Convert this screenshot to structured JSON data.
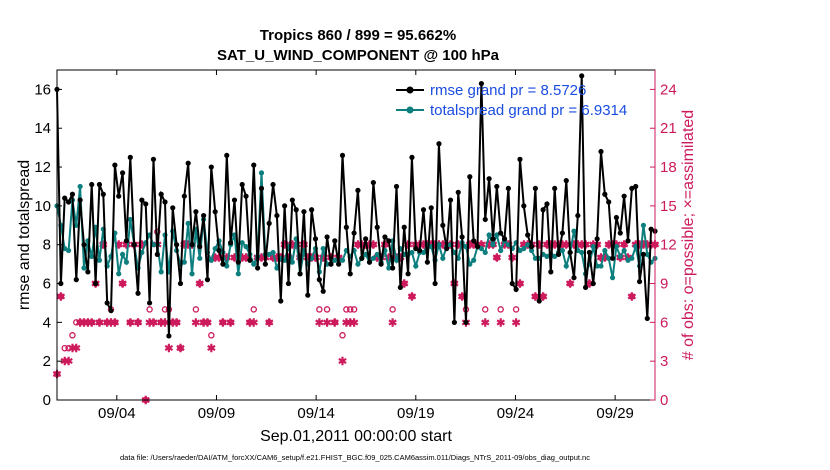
{
  "chart_data": {
    "type": "line",
    "title": "Tropics 860 / 899 = 95.662%",
    "subtitle": "SAT_U_WIND_COMPONENT @ 100 hPa",
    "xlabel": "Sep.01,2011 00:00:00 start",
    "ylabel": "rmse and totalspread",
    "y2label": "# of obs: o=possible; ×=assimilated",
    "footnote": "data file: /Users/raeder/DAI/ATM_forcXX/CAM6_setup/f.e21.FHIST_BGC.f09_025.CAM6assim.011/Diags_NTrS_2011-09/obs_diag_output.nc",
    "xlim": [
      1,
      31
    ],
    "ylim": [
      0,
      17
    ],
    "y2lim": [
      0,
      25.5
    ],
    "x_ticks": [
      {
        "label": "09/04",
        "day": 4
      },
      {
        "label": "09/09",
        "day": 9
      },
      {
        "label": "09/14",
        "day": 14
      },
      {
        "label": "09/19",
        "day": 19
      },
      {
        "label": "09/24",
        "day": 24
      },
      {
        "label": "09/29",
        "day": 29
      }
    ],
    "y_ticks": [
      "0",
      "2",
      "4",
      "6",
      "8",
      "10",
      "12",
      "14",
      "16"
    ],
    "y2_ticks": [
      "0",
      "3",
      "6",
      "9",
      "12",
      "15",
      "18",
      "21",
      "24"
    ],
    "series": [
      {
        "name": "rmse",
        "legend": "rmse grand pr = 8.5726",
        "color": "#000000",
        "values": [
          16.0,
          6.0,
          10.4,
          10.2,
          10.6,
          6.2,
          10.3,
          8.0,
          6.6,
          11.1,
          6.0,
          11.1,
          10.6,
          5.0,
          4.6,
          12.1,
          10.5,
          11.7,
          8.2,
          12.5,
          8.0,
          5.5,
          10.3,
          10.1,
          5.0,
          12.4,
          7.5,
          10.6,
          10.2,
          3.3,
          9.9,
          8.0,
          6.0,
          10.5,
          12.2,
          8.0,
          9.7,
          7.9,
          9.5,
          6.2,
          12.0,
          9.7,
          7.7,
          7.0,
          12.6,
          8.1,
          10.3,
          7.1,
          11.1,
          10.5,
          7.2,
          12.1,
          6.8,
          10.9,
          7.0,
          9.1,
          11.1,
          9.5,
          5.1,
          10.0,
          6.0,
          10.3,
          9.8,
          6.5,
          9.7,
          5.4,
          9.8,
          8.3,
          6.2,
          5.6,
          8.4,
          7.0,
          8.2,
          7.0,
          12.6,
          8.9,
          6.5,
          8.6,
          10.8,
          7.3,
          8.3,
          7.1,
          11.2,
          8.9,
          7.0,
          8.4,
          8.2,
          6.8,
          11.0,
          5.8,
          8.9,
          6.5,
          12.5,
          7.8,
          7.7,
          9.8,
          7.1,
          9.9,
          6.0,
          13.2,
          9.0,
          7.8,
          10.3,
          4.0,
          10.7,
          8.4,
          4.0,
          11.5,
          8.2,
          7.9,
          16.3,
          9.3,
          11.4,
          8.3,
          11.0,
          8.6,
          8.3,
          10.9,
          6.0,
          5.7,
          12.4,
          10.0,
          8.5,
          7.9,
          10.9,
          5.1,
          9.8,
          10.1,
          6.6,
          10.9,
          7.5,
          8.6,
          11.3,
          7.6,
          6.3,
          9.5,
          16.7,
          5.8,
          7.6,
          6.0,
          8.3,
          12.8,
          10.6,
          10.2,
          7.3,
          9.4,
          8.6,
          10.5,
          8.2,
          10.9,
          11.0,
          6.1,
          7.5,
          4.2,
          8.8,
          8.7
        ]
      },
      {
        "name": "totalspread",
        "legend": "totalspread grand pr = 6.9314",
        "color": "#0e7f7f",
        "values": [
          10.0,
          9.0,
          7.8,
          7.7,
          10.3,
          9.0,
          11.0,
          6.8,
          8.2,
          7.4,
          8.9,
          7.2,
          8.8,
          6.9,
          7.4,
          8.6,
          6.5,
          7.5,
          7.1,
          9.3,
          8.0,
          6.8,
          7.6,
          8.1,
          8.5,
          8.0,
          8.0,
          6.6,
          8.5,
          6.6,
          8.7,
          7.7,
          7.0,
          7.1,
          9.1,
          6.5,
          8.8,
          7.3,
          9.3,
          7.6,
          7.2,
          7.8,
          8.2,
          7.6,
          6.9,
          8.0,
          8.5,
          6.5,
          8.1,
          7.9,
          7.5,
          7.0,
          7.4,
          11.7,
          7.5,
          7.5,
          7.6,
          6.8,
          7.3,
          7.2,
          7.9,
          7.1,
          8.3,
          6.5,
          7.7,
          7.0,
          7.3,
          7.8,
          6.6,
          7.8,
          7.0,
          7.0,
          7.2,
          7.2,
          7.2,
          7.7,
          7.4,
          7.7,
          7.0,
          7.3,
          7.5,
          7.1,
          7.3,
          7.5,
          7.1,
          7.7,
          6.8,
          8.2,
          7.2,
          7.8,
          7.5,
          7.5,
          7.6,
          6.9,
          7.6,
          7.6,
          8.0,
          7.9,
          7.2,
          8.0,
          7.3,
          7.9,
          8.0,
          7.6,
          7.3,
          8.1,
          7.9,
          7.0,
          7.2,
          7.9,
          7.8,
          7.6,
          8.5,
          8.0,
          8.5,
          7.7,
          8.2,
          8.0,
          7.8,
          8.1,
          7.7,
          7.8,
          8.0,
          7.7,
          7.3,
          7.3,
          7.5,
          7.4,
          7.5,
          7.4,
          7.6,
          7.7,
          6.9,
          7.6,
          8.7,
          7.7,
          7.6,
          6.5,
          7.0,
          7.9,
          6.9,
          6.9,
          7.7,
          7.3,
          6.3,
          7.9,
          7.4,
          7.7,
          7.2,
          7.3,
          7.9,
          6.9,
          9.0,
          7.5,
          7.1,
          7.3
        ]
      }
    ],
    "obs_possible": [
      2,
      8,
      4,
      4,
      5,
      6,
      6,
      6,
      6,
      6,
      9,
      6,
      12,
      6,
      7,
      6,
      12,
      9,
      12,
      6,
      12,
      6,
      12,
      0,
      7,
      6,
      13,
      6,
      7,
      7,
      6,
      6,
      4,
      12,
      12,
      12,
      7,
      9,
      6,
      6,
      5,
      11,
      11,
      6,
      11,
      6,
      11,
      11,
      11,
      11,
      6,
      7,
      11,
      11,
      11,
      6,
      11,
      11,
      11,
      12,
      11,
      12,
      12,
      11,
      12,
      11,
      11,
      11,
      7,
      11,
      7,
      11,
      6,
      11,
      5,
      7,
      7,
      7,
      12,
      12,
      12,
      12,
      12,
      11,
      11,
      12,
      11,
      7,
      11,
      11,
      9,
      12,
      8,
      12,
      12,
      12,
      12,
      12,
      12,
      12,
      12,
      12,
      12,
      9,
      12,
      8,
      7,
      12,
      12,
      12,
      12,
      7,
      12,
      12,
      11,
      7,
      12,
      12,
      11,
      7,
      9,
      12,
      12,
      12,
      8,
      12,
      8,
      12,
      12,
      12,
      12,
      12,
      12,
      9,
      12,
      12,
      12,
      12,
      9,
      12,
      12,
      11,
      11,
      12,
      12,
      12,
      11,
      12,
      11,
      8,
      12,
      12,
      12,
      12,
      12,
      12
    ],
    "obs_assimilated": [
      2,
      8,
      3,
      3,
      4,
      4,
      6,
      6,
      6,
      6,
      9,
      6,
      12,
      6,
      6,
      6,
      12,
      9,
      12,
      6,
      12,
      6,
      12,
      0,
      6,
      6,
      12,
      6,
      6,
      4,
      6,
      6,
      4,
      12,
      12,
      12,
      6,
      9,
      6,
      6,
      4,
      11,
      11,
      6,
      11,
      6,
      11,
      11,
      11,
      11,
      6,
      6,
      11,
      11,
      11,
      6,
      11,
      11,
      11,
      12,
      11,
      12,
      12,
      11,
      12,
      11,
      11,
      11,
      6,
      11,
      6,
      11,
      6,
      11,
      3,
      6,
      6,
      6,
      12,
      12,
      12,
      12,
      12,
      11,
      11,
      12,
      11,
      6,
      11,
      11,
      9,
      12,
      8,
      12,
      12,
      12,
      12,
      12,
      12,
      12,
      12,
      12,
      12,
      9,
      12,
      8,
      6,
      12,
      12,
      12,
      12,
      6,
      12,
      12,
      11,
      6,
      12,
      12,
      11,
      6,
      9,
      12,
      12,
      12,
      8,
      12,
      8,
      12,
      12,
      12,
      12,
      12,
      12,
      9,
      12,
      12,
      12,
      12,
      9,
      12,
      12,
      11,
      11,
      12,
      12,
      12,
      11,
      12,
      11,
      8,
      12,
      12,
      12,
      12,
      12,
      12
    ],
    "legend_position": "top-right"
  }
}
